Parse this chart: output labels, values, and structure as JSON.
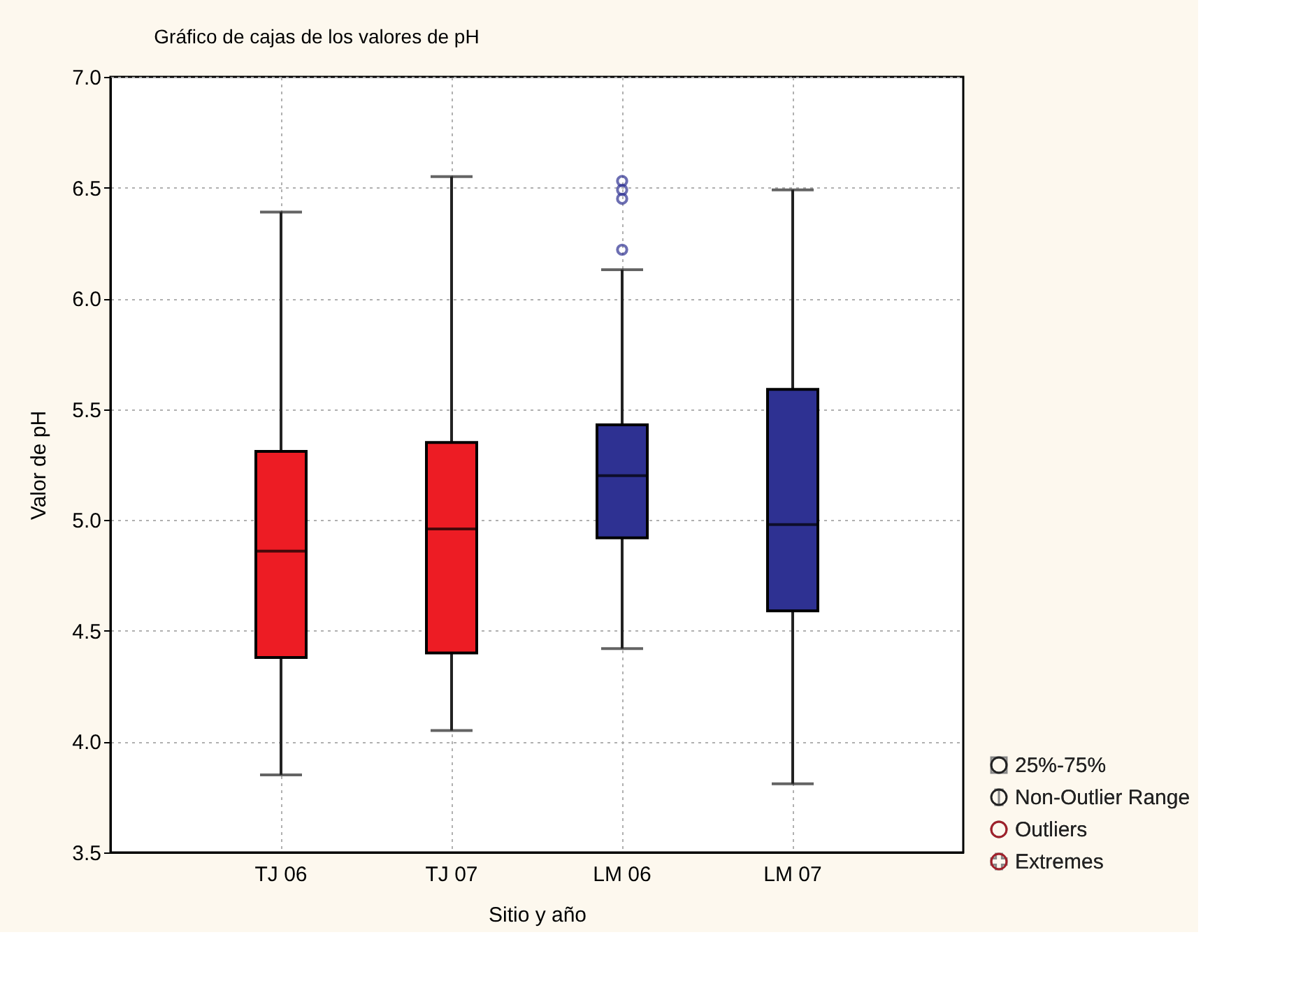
{
  "chart_data": {
    "type": "box",
    "title": "Gráfico de cajas de los valores de pH",
    "xlabel": "Sitio y año",
    "ylabel": "Valor de pH",
    "categories": [
      "TJ 06",
      "TJ 07",
      "LM 06",
      "LM 07"
    ],
    "colors": [
      "#ed1c24",
      "#ed1c24",
      "#2e3192",
      "#2e3192"
    ],
    "boxes": [
      {
        "low": 3.85,
        "q1": 4.38,
        "median": 4.86,
        "q3": 5.31,
        "high": 6.39
      },
      {
        "low": 4.05,
        "q1": 4.4,
        "median": 4.96,
        "q3": 5.35,
        "high": 6.55
      },
      {
        "low": 4.42,
        "q1": 4.92,
        "median": 5.2,
        "q3": 5.43,
        "high": 6.13,
        "outliers": [
          6.22,
          6.45,
          6.49,
          6.53
        ]
      },
      {
        "low": 3.81,
        "q1": 4.59,
        "median": 4.98,
        "q3": 5.59,
        "high": 6.49
      }
    ],
    "ylim": [
      3.5,
      7.0
    ],
    "yticks": [
      3.5,
      {
        "value": 4,
        "label": "4.0"
      },
      4.5,
      {
        "value": 5,
        "label": "5.0"
      },
      5.5,
      {
        "value": 6,
        "label": "6.0"
      },
      6.5,
      {
        "value": 7,
        "label": "7.0"
      }
    ],
    "grid": true,
    "annotations": [
      "25%-75%",
      "Non-Outlier Range",
      "Outliers",
      "Extremes"
    ]
  }
}
